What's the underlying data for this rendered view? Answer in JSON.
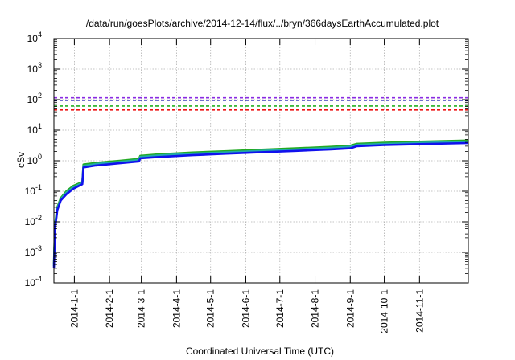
{
  "chart_data": {
    "type": "line",
    "title": "/data/run/goesPlots/archive/2014-12-14/flux/../bryn/366daysEarthAccumulated.plot",
    "xlabel": "Coordinated Universal Time (UTC)",
    "ylabel": "cSv",
    "yscale": "log",
    "grid": true,
    "xlim": [
      "2013-12-14",
      "2014-12-14"
    ],
    "ylim": [
      0.0001,
      10000
    ],
    "x_ticks": [
      "2014-1-1",
      "2014-2-1",
      "2014-3-1",
      "2014-4-1",
      "2014-5-1",
      "2014-6-1",
      "2014-7-1",
      "2014-8-1",
      "2014-9-1",
      "2014-10-1",
      "2014-11-1"
    ],
    "y_ticks": [
      {
        "value": 0.0001,
        "base": "10",
        "exp": "-4"
      },
      {
        "value": 0.001,
        "base": "10",
        "exp": "-3"
      },
      {
        "value": 0.01,
        "base": "10",
        "exp": "-2"
      },
      {
        "value": 0.1,
        "base": "10",
        "exp": "-1"
      },
      {
        "value": 1,
        "base": "10",
        "exp": "0"
      },
      {
        "value": 10,
        "base": "10",
        "exp": "1"
      },
      {
        "value": 100,
        "base": "10",
        "exp": "2"
      },
      {
        "value": 1000,
        "base": "10",
        "exp": "3"
      },
      {
        "value": 10000,
        "base": "10",
        "exp": "4"
      }
    ],
    "thresholds": [
      {
        "value": 115,
        "color": "#8a2be2"
      },
      {
        "value": 95,
        "color": "#1a1ab0"
      },
      {
        "value": 62,
        "color": "#22b022"
      },
      {
        "value": 46,
        "color": "#ee1111"
      }
    ],
    "series": [
      {
        "color": "#22aa22",
        "points": [
          [
            "2013-12-14",
            0.0004
          ],
          [
            "2013-12-15",
            0.008
          ],
          [
            "2013-12-17",
            0.03
          ],
          [
            "2013-12-20",
            0.06
          ],
          [
            "2013-12-25",
            0.1
          ],
          [
            "2013-12-31",
            0.15
          ],
          [
            "2014-01-05",
            0.18
          ],
          [
            "2014-01-08",
            0.2
          ],
          [
            "2014-01-09",
            0.75
          ],
          [
            "2014-01-20",
            0.85
          ],
          [
            "2014-02-10",
            1.0
          ],
          [
            "2014-02-27",
            1.15
          ],
          [
            "2014-02-28",
            1.45
          ],
          [
            "2014-03-15",
            1.6
          ],
          [
            "2014-04-15",
            1.85
          ],
          [
            "2014-05-15",
            2.05
          ],
          [
            "2014-06-15",
            2.3
          ],
          [
            "2014-07-15",
            2.55
          ],
          [
            "2014-08-15",
            2.85
          ],
          [
            "2014-09-01",
            3.1
          ],
          [
            "2014-09-07",
            3.6
          ],
          [
            "2014-10-01",
            3.9
          ],
          [
            "2014-11-01",
            4.2
          ],
          [
            "2014-12-14",
            4.6
          ]
        ]
      },
      {
        "color": "#22aaaa",
        "points": [
          [
            "2013-12-14",
            0.00035
          ],
          [
            "2013-12-15",
            0.007
          ],
          [
            "2013-12-17",
            0.027
          ],
          [
            "2013-12-20",
            0.055
          ],
          [
            "2013-12-25",
            0.09
          ],
          [
            "2013-12-31",
            0.135
          ],
          [
            "2014-01-05",
            0.165
          ],
          [
            "2014-01-08",
            0.185
          ],
          [
            "2014-01-09",
            0.68
          ],
          [
            "2014-01-20",
            0.78
          ],
          [
            "2014-02-10",
            0.92
          ],
          [
            "2014-02-27",
            1.06
          ],
          [
            "2014-02-28",
            1.33
          ],
          [
            "2014-03-15",
            1.47
          ],
          [
            "2014-04-15",
            1.7
          ],
          [
            "2014-05-15",
            1.88
          ],
          [
            "2014-06-15",
            2.1
          ],
          [
            "2014-07-15",
            2.33
          ],
          [
            "2014-08-15",
            2.6
          ],
          [
            "2014-09-01",
            2.85
          ],
          [
            "2014-09-07",
            3.3
          ],
          [
            "2014-10-01",
            3.58
          ],
          [
            "2014-11-01",
            3.85
          ],
          [
            "2014-12-14",
            4.2
          ]
        ]
      },
      {
        "color": "#1111ee",
        "points": [
          [
            "2013-12-14",
            0.0003
          ],
          [
            "2013-12-15",
            0.006
          ],
          [
            "2013-12-17",
            0.024
          ],
          [
            "2013-12-20",
            0.05
          ],
          [
            "2013-12-25",
            0.08
          ],
          [
            "2013-12-31",
            0.12
          ],
          [
            "2014-01-05",
            0.15
          ],
          [
            "2014-01-08",
            0.17
          ],
          [
            "2014-01-09",
            0.6
          ],
          [
            "2014-01-20",
            0.7
          ],
          [
            "2014-02-10",
            0.83
          ],
          [
            "2014-02-27",
            0.95
          ],
          [
            "2014-02-28",
            1.2
          ],
          [
            "2014-03-15",
            1.32
          ],
          [
            "2014-04-15",
            1.52
          ],
          [
            "2014-05-15",
            1.7
          ],
          [
            "2014-06-15",
            1.9
          ],
          [
            "2014-07-15",
            2.1
          ],
          [
            "2014-08-15",
            2.35
          ],
          [
            "2014-09-01",
            2.55
          ],
          [
            "2014-09-07",
            3.0
          ],
          [
            "2014-10-01",
            3.25
          ],
          [
            "2014-11-01",
            3.5
          ],
          [
            "2014-12-14",
            3.8
          ]
        ]
      }
    ]
  }
}
